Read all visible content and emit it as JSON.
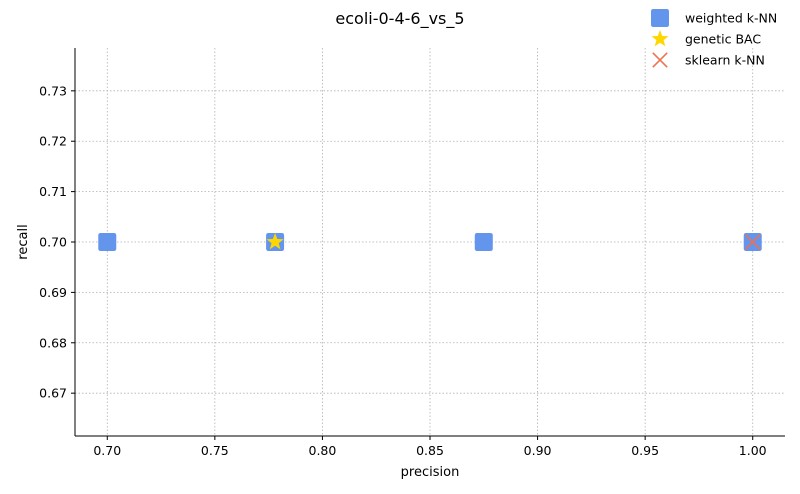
{
  "chart_data": {
    "type": "scatter",
    "title": "ecoli-0-4-6_vs_5",
    "xlabel": "precision",
    "ylabel": "recall",
    "xlim": [
      0.685,
      1.015
    ],
    "ylim": [
      0.6615,
      0.7385
    ],
    "xticks": [
      0.7,
      0.75,
      0.8,
      0.85,
      0.9,
      0.95,
      1.0
    ],
    "yticks": [
      0.67,
      0.68,
      0.69,
      0.7,
      0.71,
      0.72,
      0.73
    ],
    "grid": true,
    "legend_position": "top-right",
    "series": [
      {
        "name": "weighted k-NN",
        "marker": "square",
        "color": "#6495ED",
        "points": [
          {
            "x": 0.7,
            "y": 0.7
          },
          {
            "x": 0.778,
            "y": 0.7
          },
          {
            "x": 0.875,
            "y": 0.7
          },
          {
            "x": 1.0,
            "y": 0.7
          }
        ]
      },
      {
        "name": "genetic BAC",
        "marker": "star",
        "color": "#FFD700",
        "points": [
          {
            "x": 0.778,
            "y": 0.7
          }
        ]
      },
      {
        "name": "sklearn k-NN",
        "marker": "x",
        "color": "#F07050",
        "points": [
          {
            "x": 1.0,
            "y": 0.7
          }
        ]
      }
    ]
  }
}
